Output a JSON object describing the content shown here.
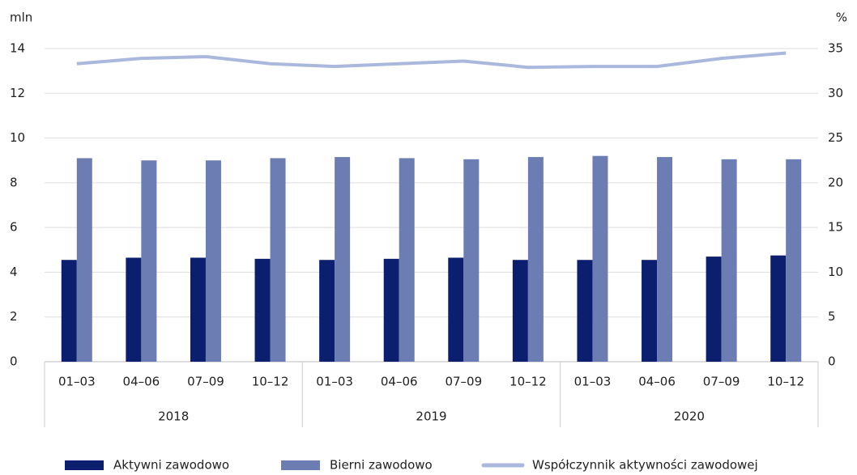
{
  "chart_data": {
    "type": "bar_line",
    "y_label": "mln",
    "y2_label": "%",
    "categories": [
      "01–03",
      "04–06",
      "07–09",
      "10–12",
      "01–03",
      "04–06",
      "07–09",
      "10–12",
      "01–03",
      "04–06",
      "07–09",
      "10–12"
    ],
    "years": [
      "2018",
      "2019",
      "2020"
    ],
    "series": [
      {
        "name": "Aktywni zawodowo",
        "color": "#0b1f6e",
        "type": "bar",
        "values": [
          4.55,
          4.65,
          4.65,
          4.6,
          4.55,
          4.6,
          4.65,
          4.55,
          4.55,
          4.55,
          4.7,
          4.75
        ]
      },
      {
        "name": "Bierni zawodowo",
        "color": "#6b7db3",
        "type": "bar",
        "values": [
          9.1,
          9.0,
          9.0,
          9.1,
          9.15,
          9.1,
          9.05,
          9.15,
          9.2,
          9.15,
          9.05,
          9.05
        ]
      },
      {
        "name": "Współczynnik aktywności zawodowej",
        "color": "#aab8de",
        "type": "line",
        "axis": "y2",
        "values": [
          33.3,
          33.9,
          34.1,
          33.3,
          33.0,
          33.3,
          33.6,
          32.9,
          33.0,
          33.0,
          33.9,
          34.5
        ]
      }
    ],
    "ylim": [
      0,
      14
    ],
    "yticks": [
      0,
      2,
      4,
      6,
      8,
      10,
      12,
      14
    ],
    "y2lim": [
      0,
      35
    ],
    "y2ticks": [
      0,
      5,
      10,
      15,
      20,
      25,
      30,
      35
    ],
    "grid": true,
    "legend": "bottom"
  }
}
